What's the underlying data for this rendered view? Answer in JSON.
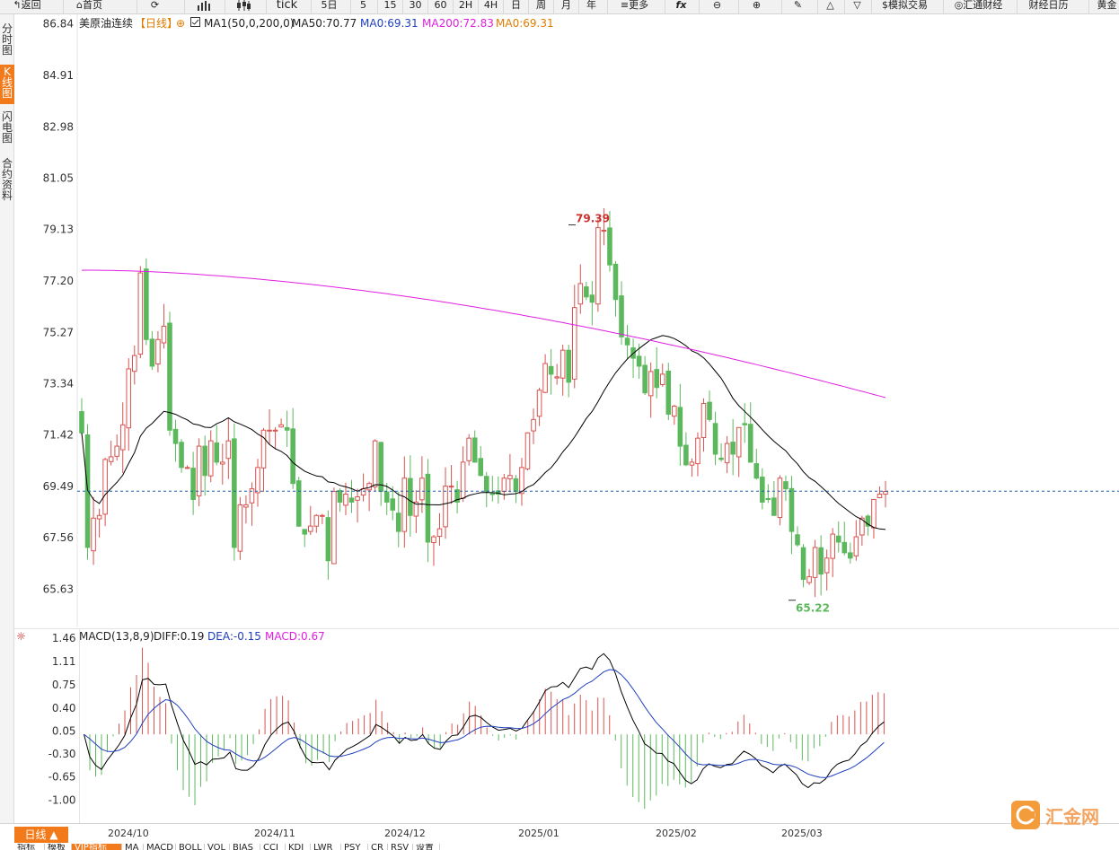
{
  "toolbar": {
    "back": "返回",
    "home": "首页",
    "tick": "tick",
    "periods": [
      "5日",
      "5",
      "15",
      "30",
      "60",
      "2H",
      "4H",
      "日",
      "周",
      "月",
      "年"
    ],
    "more": "更多",
    "fx": "fx",
    "simulate": "模拟交易",
    "huitong": "汇通财经",
    "calendar": "财经日历",
    "gold": "黄金"
  },
  "sidebar": {
    "tabs": [
      "分时图",
      "K线图",
      "闪电图",
      "合约资料"
    ]
  },
  "legend": {
    "symbol": "美原油连续",
    "period": "【日线】",
    "ma1": "MA1(50,0,200,0)",
    "ma50": "MA50:70.77",
    "ma0": "MA0:69.31",
    "ma200": "MA200:72.83",
    "ma0b": "MA0:69.31"
  },
  "macd_legend": {
    "title": "MACD(13,8,9)",
    "diff": "DIFF:0.19",
    "dea": "DEA:-0.15",
    "macd": "MACD:0.67"
  },
  "annotations": {
    "high": "79.39",
    "low": "65.22"
  },
  "bottom": {
    "period_button": "日线 ▲",
    "x_labels": [
      "2024/10",
      "2024/11",
      "2024/12",
      "2025/01",
      "2025/02",
      "2025/03"
    ],
    "indicator_tabs": [
      "指标",
      "模板",
      "VIP指标",
      "MA",
      "MACD",
      "BOLL",
      "VOL",
      "BIAS",
      "CCI",
      "KDJ",
      "LWR",
      "PSY",
      "CR",
      "RSV",
      "设置"
    ]
  },
  "watermark": {
    "text": "汇金网"
  },
  "colors": {
    "up": "#d9534f",
    "down": "#5cb85c",
    "ma50": "#000000",
    "ma200": "#e020e0",
    "dea": "#1f3fbf",
    "macd_label": "#e020e0",
    "current_line": "#1f5fa8",
    "accent": "#f27a1a"
  },
  "chart_data": [
    {
      "type": "candlestick",
      "title": "美原油连续",
      "y_ticks": [
        86.84,
        84.91,
        82.98,
        81.05,
        79.13,
        77.2,
        75.27,
        73.34,
        71.42,
        69.49,
        67.56,
        65.63
      ],
      "ylim": [
        64.2,
        87.2
      ],
      "x_labels": [
        "2024/10",
        "2024/11",
        "2024/12",
        "2025/01",
        "2025/02",
        "2025/03"
      ],
      "current_price": 69.31,
      "max_label": 79.39,
      "min_label": 65.22,
      "candles_close": [
        71.5,
        67.2,
        68.3,
        68.4,
        70.5,
        70.6,
        71.0,
        71.8,
        73.9,
        74.4,
        77.5,
        75.0,
        74.0,
        75.0,
        75.5,
        71.6,
        71.1,
        70.2,
        70.2,
        69.0,
        71.0,
        69.9,
        71.2,
        70.4,
        70.4,
        71.2,
        67.2,
        68.8,
        68.8,
        69.4,
        70.2,
        71.6,
        71.6,
        71.6,
        71.8,
        71.6,
        69.6,
        68.0,
        67.7,
        68.0,
        68.4,
        68.4,
        66.7,
        69.3,
        68.9,
        69.2,
        68.9,
        69.1,
        69.4,
        69.6,
        71.2,
        69.3,
        68.9,
        68.6,
        67.8,
        69.8,
        68.4,
        68.9,
        69.8,
        67.4,
        67.6,
        67.9,
        69.5,
        69.5,
        68.9,
        70.4,
        71.3,
        70.4,
        69.9,
        69.3,
        69.2,
        69.2,
        69.8,
        69.9,
        69.3,
        70.2,
        71.5,
        72.0,
        73.1,
        74.1,
        73.7,
        73.6,
        74.6,
        73.4,
        76.2,
        77.1,
        76.6,
        76.4,
        79.2,
        79.1,
        77.8,
        76.5,
        75.1,
        74.8,
        74.3,
        74.0,
        73.0,
        73.8,
        73.2,
        73.7,
        72.2,
        72.5,
        71.0,
        70.3,
        70.4,
        71.3,
        72.6,
        72.0,
        70.7,
        70.5,
        71.1,
        70.7,
        71.7,
        71.8,
        70.4,
        69.8,
        68.9,
        69.0,
        68.4,
        69.8,
        69.4,
        67.8,
        67.3,
        66.0,
        66.1,
        67.2,
        66.2,
        66.8,
        67.7,
        67.4,
        67.0,
        66.8,
        67.6,
        68.3,
        68.0,
        69.0,
        69.2,
        69.3
      ]
    },
    {
      "type": "bar",
      "title": "MACD(13,8,9)",
      "y_ticks": [
        1.46,
        1.11,
        0.75,
        0.4,
        0.05,
        -0.3,
        -0.65,
        -1.0
      ],
      "ylim": [
        -1.35,
        1.6
      ],
      "series": [
        {
          "name": "DIFF",
          "last": 0.19
        },
        {
          "name": "DEA",
          "last": -0.15
        },
        {
          "name": "MACD",
          "last": 0.67
        }
      ]
    }
  ]
}
